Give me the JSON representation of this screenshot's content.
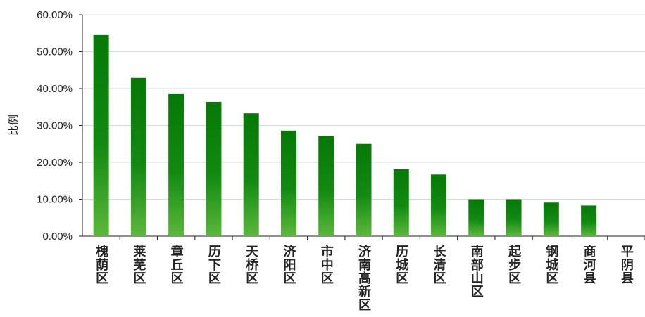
{
  "chart_data": {
    "type": "bar",
    "ylabel": "比例",
    "categories": [
      "槐荫区",
      "莱芜区",
      "章丘区",
      "历下区",
      "天桥区",
      "济阳区",
      "市中区",
      "济南高新区",
      "历城区",
      "长清区",
      "南部山区",
      "起步区",
      "钢城区",
      "商河县",
      "平阴县"
    ],
    "values": [
      54.5,
      42.9,
      38.5,
      36.4,
      33.3,
      28.6,
      27.2,
      25.0,
      18.1,
      16.7,
      10.0,
      10.0,
      9.1,
      8.3,
      0
    ],
    "color": "#067806",
    "ylim": [
      0,
      60
    ],
    "yticks": [
      {
        "value": 0,
        "label": "0.00%"
      },
      {
        "value": 10,
        "label": "10.00%"
      },
      {
        "value": 20,
        "label": "20.00%"
      },
      {
        "value": 30,
        "label": "30.00%"
      },
      {
        "value": 40,
        "label": "40.00%"
      },
      {
        "value": 50,
        "label": "50.00%"
      },
      {
        "value": 60,
        "label": "60.00%"
      }
    ],
    "grid": true
  }
}
